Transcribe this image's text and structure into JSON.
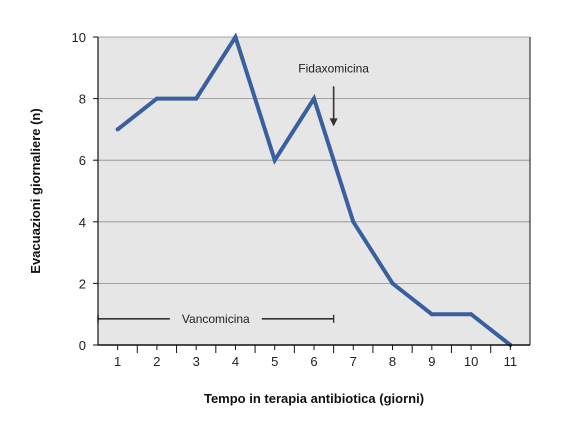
{
  "chart_data": {
    "type": "line",
    "title": "",
    "xlabel": "Tempo in terapia antibiotica (giorni)",
    "ylabel": "Evacuazioni giornaliere (n)",
    "x": [
      1,
      2,
      3,
      4,
      5,
      6,
      7,
      8,
      9,
      10,
      11
    ],
    "xlim": [
      0.5,
      11.5
    ],
    "ylim": [
      0,
      10
    ],
    "yticks": [
      0,
      2,
      4,
      6,
      8,
      10
    ],
    "xticks": [
      "1",
      "2",
      "3",
      "4",
      "5",
      "6",
      "7",
      "8",
      "9",
      "10",
      "11"
    ],
    "grid": "horizontal",
    "series": [
      {
        "values": [
          7,
          8,
          8,
          10,
          6,
          8,
          4,
          2,
          1,
          1,
          0
        ],
        "color": "#3a5f9f"
      }
    ],
    "annotations": {
      "fidaxomicina": {
        "label": "Fidaxomicina",
        "x": 6.5,
        "y_from": 8.4,
        "y_to": 7.1
      },
      "vancomicina": {
        "label": "Vancomicina",
        "x_start": 0.5,
        "x_end": 6.5,
        "y": 0.85
      }
    },
    "colors": {
      "plot_background": "#e6e6e6",
      "line": "#3a5f9f",
      "grid": "#8c8c8c"
    }
  }
}
